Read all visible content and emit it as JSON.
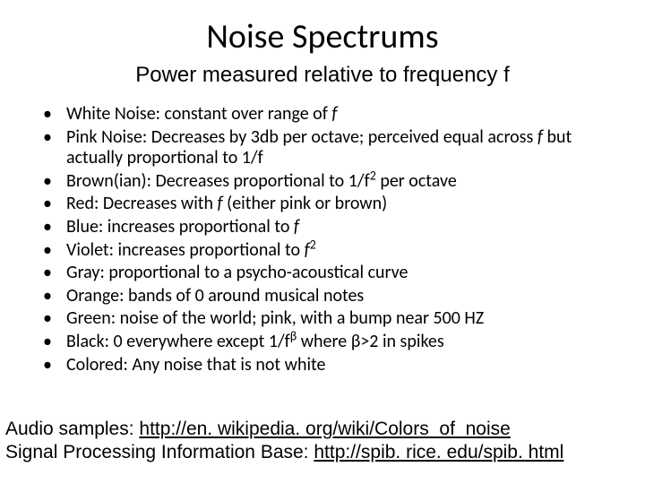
{
  "title": "Noise Spectrums",
  "subtitle": "Power measured relative to frequency f",
  "bullets": [
    {
      "html": "White Noise: constant over range of <span class='ital'>f</span>"
    },
    {
      "html": "Pink Noise: Decreases by 3db per octave; perceived equal across <span class='ital'>f</span> but actually  proportional to 1/f"
    },
    {
      "html": "Brown(ian): Decreases proportional to 1/f<sup>2</sup> per octave"
    },
    {
      "html": "Red: Decreases with <span class='ital'>f</span> (either pink or brown)"
    },
    {
      "html": "Blue: increases proportional to <span class='ital'>f</span>"
    },
    {
      "html": "Violet: increases proportional to <span class='ital'>f</span><sup>2</sup>"
    },
    {
      "html": "Gray: proportional to a psycho-acoustical curve"
    },
    {
      "html": "Orange: bands of 0 around musical notes"
    },
    {
      "html": "Green: noise of the world; pink, with a bump near 500 HZ"
    },
    {
      "html": "Black: 0 everywhere except 1/f<sup>β</sup> where β&gt;2 in spikes"
    },
    {
      "html": "Colored: Any noise that is not white"
    }
  ],
  "footer": {
    "line1_label": "Audio samples: ",
    "line1_link": "http://en. wikipedia. org/wiki/Colors_of_noise",
    "line2_label": "Signal Processing Information Base: ",
    "line2_link": "http://spib. rice. edu/spib. html"
  }
}
